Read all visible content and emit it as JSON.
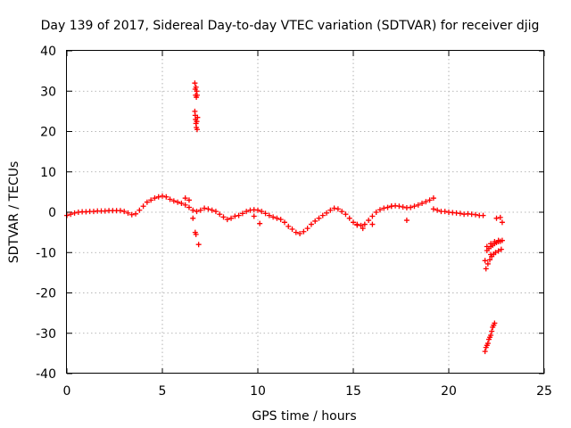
{
  "chart_data": {
    "type": "scatter",
    "title": "Day 139 of 2017, Sidereal Day-to-day VTEC variation (SDTVAR) for receiver djig",
    "xlabel": "GPS time / hours",
    "ylabel": "SDTVAR / TECUs",
    "xlim": [
      0,
      25
    ],
    "ylim": [
      -40,
      40
    ],
    "xticks": [
      0,
      5,
      10,
      15,
      20,
      25
    ],
    "yticks": [
      -40,
      -30,
      -20,
      -10,
      0,
      10,
      20,
      30,
      40
    ],
    "grid": true,
    "marker": "plus",
    "color": "#ff0000",
    "series": [
      {
        "name": "SDTVAR",
        "x": [
          0.0,
          0.2,
          0.4,
          0.6,
          0.8,
          1.0,
          1.2,
          1.4,
          1.6,
          1.8,
          2.0,
          2.2,
          2.4,
          2.6,
          2.8,
          3.0,
          3.2,
          3.4,
          3.6,
          3.8,
          4.0,
          4.2,
          4.4,
          4.6,
          4.8,
          5.0,
          5.2,
          5.4,
          5.6,
          5.8,
          6.0,
          6.2,
          6.4,
          6.6,
          6.8,
          7.0,
          7.2,
          7.4,
          7.6,
          7.8,
          8.0,
          8.2,
          8.4,
          8.6,
          8.8,
          9.0,
          9.2,
          9.4,
          9.6,
          9.8,
          10.0,
          10.2,
          10.4,
          10.6,
          10.8,
          11.0,
          11.2,
          11.4,
          11.6,
          11.8,
          12.0,
          12.2,
          12.4,
          12.6,
          12.8,
          13.0,
          13.2,
          13.4,
          13.6,
          13.8,
          14.0,
          14.2,
          14.4,
          14.6,
          14.8,
          15.0,
          15.2,
          15.4,
          15.6,
          15.8,
          16.0,
          16.2,
          16.4,
          16.6,
          16.8,
          17.0,
          17.2,
          17.4,
          17.6,
          17.8,
          18.0,
          18.2,
          18.4,
          18.6,
          18.8,
          19.0,
          19.2,
          19.4,
          19.6,
          19.8,
          20.0,
          20.2,
          20.4,
          20.6,
          20.8,
          21.0,
          21.2,
          21.4,
          21.6,
          21.8,
          22.5,
          22.7,
          6.7,
          6.72,
          6.74,
          6.76,
          6.78,
          6.8,
          6.82,
          6.7,
          6.72,
          6.74,
          6.76,
          6.78,
          6.8,
          6.82,
          6.84,
          6.72,
          6.76,
          6.9,
          22.8,
          22.6,
          22.4,
          22.2,
          22.0,
          22.0,
          22.1,
          22.2,
          22.3,
          22.4,
          22.5,
          22.6,
          22.7,
          22.8,
          21.95,
          22.05,
          22.15,
          22.25,
          22.35,
          22.45,
          22.6,
          22.75,
          21.9,
          21.95,
          22.0,
          22.05,
          22.1,
          22.15,
          22.2,
          22.25,
          22.3,
          22.35,
          22.4,
          6.2,
          6.4,
          6.6,
          9.8,
          10.1,
          15.2,
          15.5,
          16.0,
          17.0,
          17.8,
          19.2,
          21.9,
          22.2
        ],
        "y": [
          -0.8,
          -0.5,
          -0.2,
          0.0,
          0.1,
          0.1,
          0.2,
          0.2,
          0.3,
          0.3,
          0.3,
          0.4,
          0.4,
          0.4,
          0.4,
          0.2,
          -0.2,
          -0.6,
          -0.4,
          0.5,
          1.5,
          2.5,
          3.0,
          3.5,
          3.8,
          4.0,
          3.8,
          3.2,
          2.8,
          2.5,
          2.2,
          1.8,
          1.2,
          0.5,
          0.2,
          0.5,
          1.0,
          0.8,
          0.5,
          0.2,
          -0.5,
          -1.2,
          -1.8,
          -1.5,
          -1.0,
          -0.8,
          -0.3,
          0.2,
          0.5,
          0.6,
          0.5,
          0.2,
          -0.3,
          -0.8,
          -1.2,
          -1.5,
          -1.8,
          -2.5,
          -3.5,
          -4.2,
          -5.0,
          -5.3,
          -4.8,
          -4.0,
          -3.0,
          -2.2,
          -1.5,
          -0.8,
          -0.2,
          0.5,
          1.0,
          0.8,
          0.2,
          -0.5,
          -1.5,
          -2.5,
          -3.0,
          -3.3,
          -3.0,
          -2.0,
          -1.0,
          0.0,
          0.6,
          1.0,
          1.2,
          1.5,
          1.6,
          1.5,
          1.3,
          1.1,
          1.2,
          1.5,
          1.8,
          2.2,
          2.6,
          3.0,
          0.8,
          0.5,
          0.2,
          0.2,
          0.0,
          -0.1,
          -0.2,
          -0.3,
          -0.5,
          -0.4,
          -0.5,
          -0.6,
          -0.8,
          -0.8,
          -1.5,
          -1.3,
          32.0,
          30.5,
          29.0,
          31.0,
          28.5,
          30.0,
          29.0,
          25.0,
          24.0,
          23.0,
          22.0,
          21.0,
          22.5,
          20.5,
          23.5,
          -5.0,
          -5.5,
          -8.0,
          -2.5,
          -7.0,
          -7.3,
          -7.8,
          -8.5,
          -9.5,
          -9.0,
          -8.5,
          -8.2,
          -7.8,
          -7.5,
          -7.3,
          -7.2,
          -7.0,
          -14.0,
          -12.8,
          -11.8,
          -11.0,
          -10.4,
          -10.0,
          -9.6,
          -9.2,
          -34.5,
          -33.5,
          -33.0,
          -32.5,
          -31.5,
          -31.0,
          -30.5,
          -29.5,
          -28.5,
          -28.0,
          -27.5,
          3.5,
          3.0,
          -1.5,
          -1.0,
          -2.8,
          -3.2,
          -4.0,
          -3.0,
          1.5,
          -2.0,
          3.5,
          -12.0,
          -10.5
        ]
      }
    ]
  }
}
